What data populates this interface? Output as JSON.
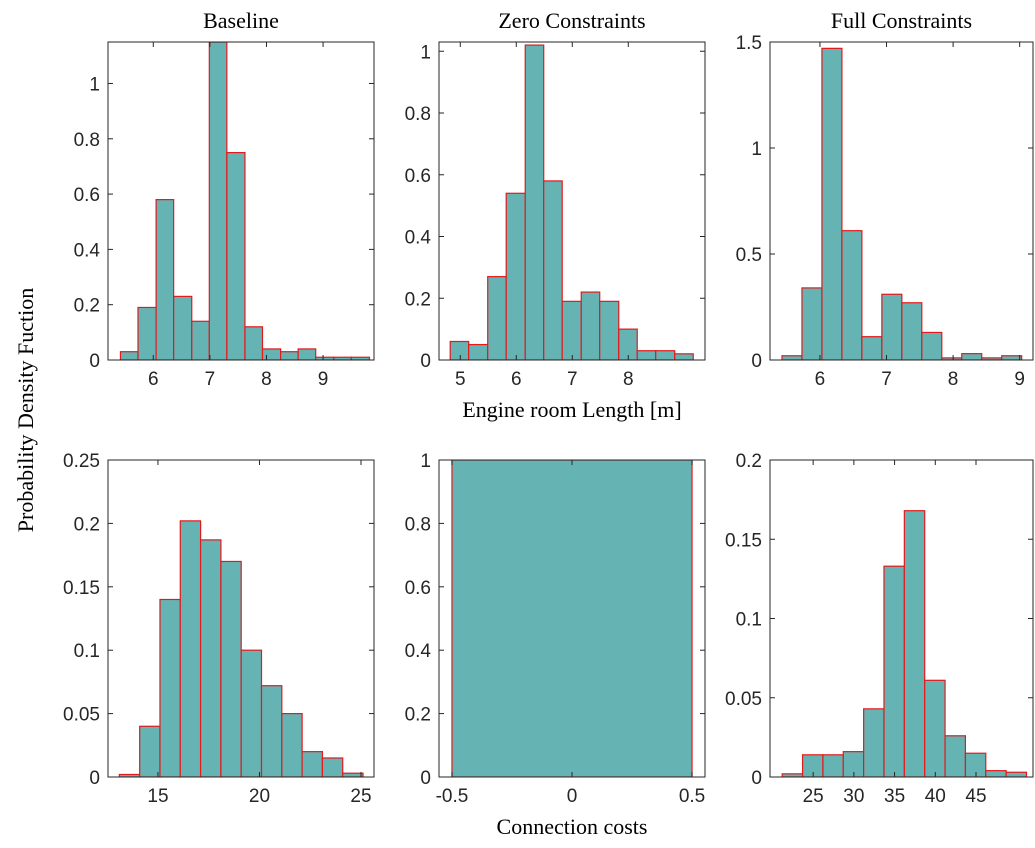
{
  "ylabel": "Probability Density Fuction",
  "chart_data": [
    {
      "type": "histogram",
      "title": "Baseline",
      "color": "#66b3b3",
      "edgecolor": "#e31a1c",
      "bins": [
        5.42,
        5.73,
        6.05,
        6.36,
        6.68,
        6.99,
        7.3,
        7.62,
        7.93,
        8.25,
        8.56,
        8.87,
        9.19,
        9.5,
        9.82
      ],
      "values": [
        0.03,
        0.19,
        0.58,
        0.23,
        0.14,
        1.15,
        0.75,
        0.12,
        0.04,
        0.03,
        0.04,
        0.01,
        0.01,
        0.01
      ],
      "xlim": [
        5.2,
        9.9
      ],
      "ylim": [
        0,
        1.15
      ],
      "xticks": [
        6,
        7,
        8,
        9
      ],
      "yticks": [
        0,
        0.2,
        0.4,
        0.6,
        0.8,
        1
      ]
    },
    {
      "type": "histogram",
      "title": "Zero Constraints",
      "xlabel": "Engine room Length [m]",
      "color": "#66b3b3",
      "edgecolor": "#e31a1c",
      "bins": [
        4.82,
        5.15,
        5.49,
        5.82,
        6.16,
        6.49,
        6.82,
        7.16,
        7.49,
        7.83,
        8.16,
        8.49,
        8.83,
        9.16
      ],
      "values": [
        0.06,
        0.05,
        0.27,
        0.54,
        1.02,
        0.58,
        0.19,
        0.22,
        0.19,
        0.1,
        0.03,
        0.03,
        0.02
      ],
      "xlim": [
        4.62,
        9.37
      ],
      "ylim": [
        0,
        1.03
      ],
      "xticks": [
        5,
        6,
        7,
        8
      ],
      "yticks": [
        0,
        0.2,
        0.4,
        0.6,
        0.8,
        1
      ]
    },
    {
      "type": "histogram",
      "title": "Full Constraints",
      "color": "#66b3b3",
      "edgecolor": "#e31a1c",
      "bins": [
        5.43,
        5.73,
        6.03,
        6.33,
        6.63,
        6.93,
        7.23,
        7.53,
        7.83,
        8.13,
        8.43,
        8.73,
        9.03
      ],
      "values": [
        0.02,
        0.34,
        1.47,
        0.61,
        0.11,
        0.31,
        0.27,
        0.13,
        0.01,
        0.03,
        0.01,
        0.02
      ],
      "xlim": [
        5.25,
        9.2
      ],
      "ylim": [
        0,
        1.5
      ],
      "xticks": [
        6,
        7,
        8,
        9
      ],
      "yticks": [
        0,
        0.5,
        1,
        1.5
      ]
    },
    {
      "type": "histogram",
      "color": "#66b3b3",
      "edgecolor": "#e31a1c",
      "bins": [
        13.1,
        14.1,
        15.1,
        16.1,
        17.1,
        18.1,
        19.1,
        20.1,
        21.1,
        22.1,
        23.1,
        24.1,
        25.1
      ],
      "values": [
        0.002,
        0.04,
        0.14,
        0.202,
        0.187,
        0.17,
        0.1,
        0.072,
        0.05,
        0.02,
        0.015,
        0.003
      ],
      "xlim": [
        12.54,
        25.64
      ],
      "ylim": [
        0,
        0.25
      ],
      "xticks": [
        15,
        20,
        25
      ],
      "yticks": [
        0,
        0.05,
        0.1,
        0.15,
        0.2,
        0.25
      ]
    },
    {
      "type": "histogram",
      "xlabel": "Connection costs",
      "color": "#66b3b3",
      "edgecolor": "#e31a1c",
      "bins": [
        -0.5,
        0.5
      ],
      "values": [
        1
      ],
      "xlim": [
        -0.554,
        0.554
      ],
      "ylim": [
        0,
        1
      ],
      "xticks": [
        -0.5,
        0,
        0.5
      ],
      "yticks": [
        0,
        0.2,
        0.4,
        0.6,
        0.8,
        1
      ]
    },
    {
      "type": "histogram",
      "color": "#66b3b3",
      "edgecolor": "#e31a1c",
      "bins": [
        21.2,
        23.7,
        26.2,
        28.7,
        31.2,
        33.7,
        36.2,
        38.7,
        41.2,
        43.7,
        46.2,
        48.7,
        51.2
      ],
      "values": [
        0.002,
        0.014,
        0.014,
        0.016,
        0.043,
        0.133,
        0.168,
        0.061,
        0.026,
        0.015,
        0.004,
        0.003
      ],
      "xlim": [
        19.7,
        52
      ],
      "ylim": [
        0,
        0.2
      ],
      "xticks": [
        25,
        30,
        35,
        40,
        45
      ],
      "yticks": [
        0,
        0.05,
        0.1,
        0.15,
        0.2
      ]
    }
  ]
}
